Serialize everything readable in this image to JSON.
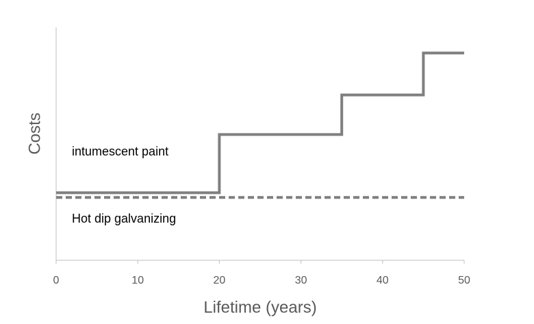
{
  "chart_data": {
    "type": "line",
    "xlabel": "Lifetime (years)",
    "ylabel": "Costs",
    "xlim": [
      0,
      50
    ],
    "xticks": [
      0,
      10,
      20,
      30,
      40,
      50
    ],
    "ylim": [
      0,
      100
    ],
    "series": [
      {
        "name": "intumescent paint",
        "color": "#7f7f7f",
        "linestyle": "solid",
        "x": [
          0,
          20,
          20,
          35,
          35,
          45,
          45,
          50
        ],
        "values": [
          29,
          29,
          54,
          54,
          71,
          71,
          89,
          89
        ]
      },
      {
        "name": "Hot dip galvanizing",
        "color": "#7f7f7f",
        "linestyle": "dashed",
        "x": [
          0,
          50
        ],
        "values": [
          27,
          27
        ]
      }
    ]
  }
}
